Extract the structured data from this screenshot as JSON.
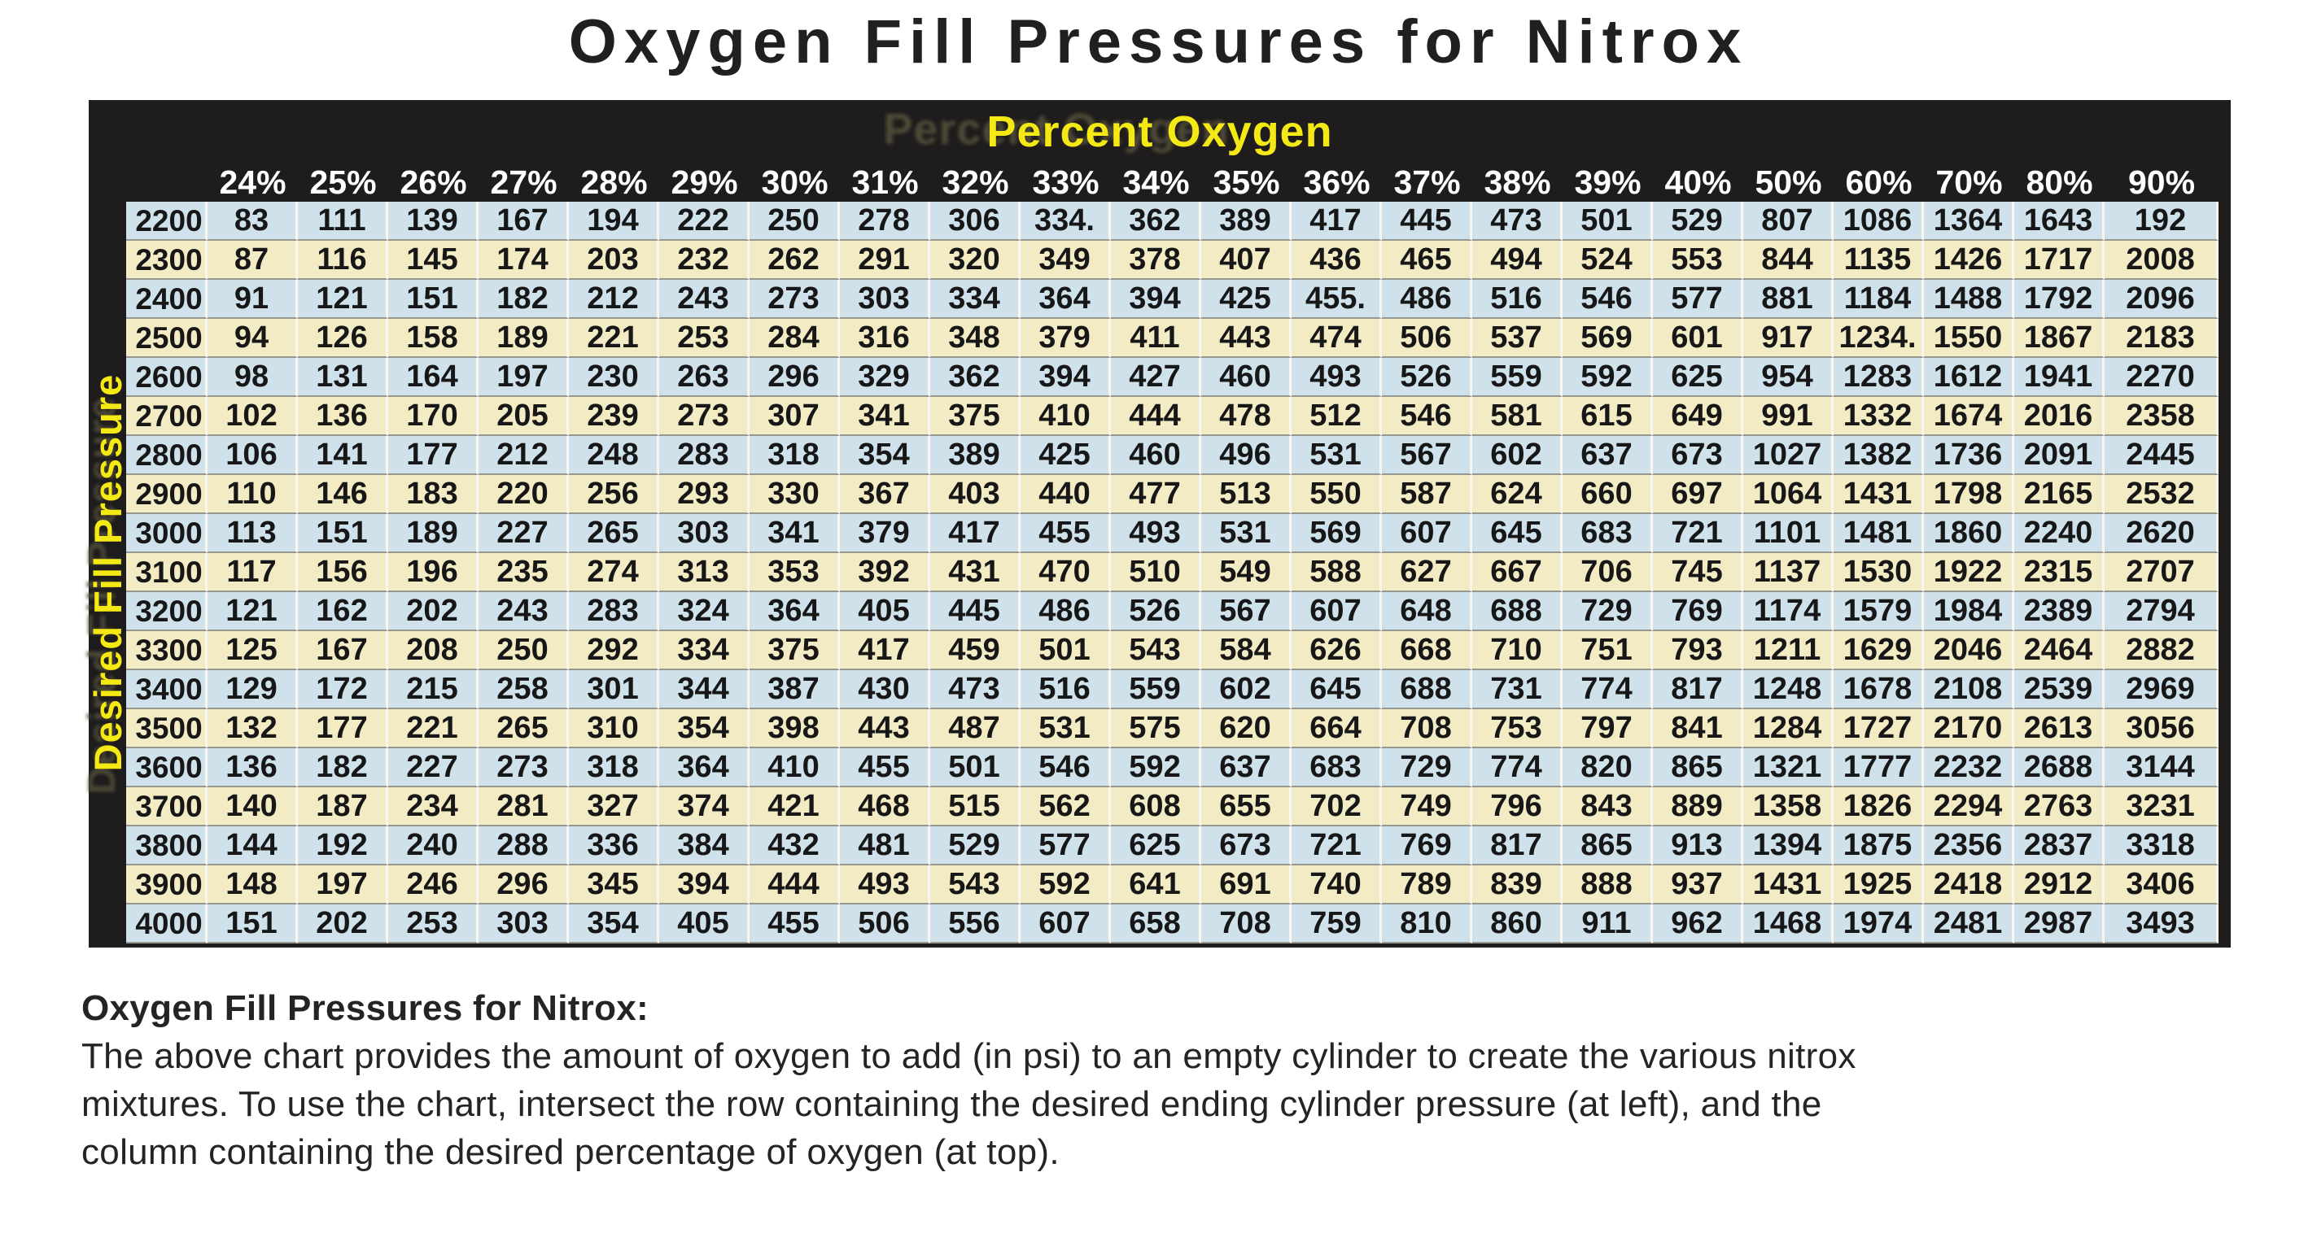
{
  "colors": {
    "page_bg": "#ffffff",
    "frame_black": "#1e1c1c",
    "accent_yellow": "#f5e915",
    "row_blue": "#cfe2ec",
    "row_cream": "#f2ebc4",
    "title_color": "#221f20",
    "footer_color": "#242422"
  },
  "chart_data": {
    "type": "table",
    "title": "Oxygen Fill Pressures for Nitrox",
    "column_axis_label": "Percent Oxygen",
    "row_axis_label": "Desired Fill Pressure",
    "column_headers": [
      "24%",
      "25%",
      "26%",
      "27%",
      "28%",
      "29%",
      "30%",
      "31%",
      "32%",
      "33%",
      "34%",
      "35%",
      "36%",
      "37%",
      "38%",
      "39%",
      "40%",
      "50%",
      "60%",
      "70%",
      "80%",
      "90%"
    ],
    "rows": [
      {
        "label": "2200",
        "values": [
          "83",
          "111",
          "139",
          "167",
          "194",
          "222",
          "250",
          "278",
          "306",
          "334.",
          "362",
          "389",
          "417",
          "445",
          "473",
          "501",
          "529",
          "807",
          "1086",
          "1364",
          "1643",
          "192"
        ]
      },
      {
        "label": "2300",
        "values": [
          "87",
          "116",
          "145",
          "174",
          "203",
          "232",
          "262",
          "291",
          "320",
          "349",
          "378",
          "407",
          "436",
          "465",
          "494",
          "524",
          "553",
          "844",
          "1135",
          "1426",
          "1717",
          "2008"
        ]
      },
      {
        "label": "2400",
        "values": [
          "91",
          "121",
          "151",
          "182",
          "212",
          "243",
          "273",
          "303",
          "334",
          "364",
          "394",
          "425",
          "455.",
          "486",
          "516",
          "546",
          "577",
          "881",
          "1184",
          "1488",
          "1792",
          "2096"
        ]
      },
      {
        "label": "2500",
        "values": [
          "94",
          "126",
          "158",
          "189",
          "221",
          "253",
          "284",
          "316",
          "348",
          "379",
          "411",
          "443",
          "474",
          "506",
          "537",
          "569",
          "601",
          "917",
          "1234.",
          "1550",
          "1867",
          "2183"
        ]
      },
      {
        "label": "2600",
        "values": [
          "98",
          "131",
          "164",
          "197",
          "230",
          "263",
          "296",
          "329",
          "362",
          "394",
          "427",
          "460",
          "493",
          "526",
          "559",
          "592",
          "625",
          "954",
          "1283",
          "1612",
          "1941",
          "2270"
        ]
      },
      {
        "label": "2700",
        "values": [
          "102",
          "136",
          "170",
          "205",
          "239",
          "273",
          "307",
          "341",
          "375",
          "410",
          "444",
          "478",
          "512",
          "546",
          "581",
          "615",
          "649",
          "991",
          "1332",
          "1674",
          "2016",
          "2358"
        ]
      },
      {
        "label": "2800",
        "values": [
          "106",
          "141",
          "177",
          "212",
          "248",
          "283",
          "318",
          "354",
          "389",
          "425",
          "460",
          "496",
          "531",
          "567",
          "602",
          "637",
          "673",
          "1027",
          "1382",
          "1736",
          "2091",
          "2445"
        ]
      },
      {
        "label": "2900",
        "values": [
          "110",
          "146",
          "183",
          "220",
          "256",
          "293",
          "330",
          "367",
          "403",
          "440",
          "477",
          "513",
          "550",
          "587",
          "624",
          "660",
          "697",
          "1064",
          "1431",
          "1798",
          "2165",
          "2532"
        ]
      },
      {
        "label": "3000",
        "values": [
          "113",
          "151",
          "189",
          "227",
          "265",
          "303",
          "341",
          "379",
          "417",
          "455",
          "493",
          "531",
          "569",
          "607",
          "645",
          "683",
          "721",
          "1101",
          "1481",
          "1860",
          "2240",
          "2620"
        ]
      },
      {
        "label": "3100",
        "values": [
          "117",
          "156",
          "196",
          "235",
          "274",
          "313",
          "353",
          "392",
          "431",
          "470",
          "510",
          "549",
          "588",
          "627",
          "667",
          "706",
          "745",
          "1137",
          "1530",
          "1922",
          "2315",
          "2707"
        ]
      },
      {
        "label": "3200",
        "values": [
          "121",
          "162",
          "202",
          "243",
          "283",
          "324",
          "364",
          "405",
          "445",
          "486",
          "526",
          "567",
          "607",
          "648",
          "688",
          "729",
          "769",
          "1174",
          "1579",
          "1984",
          "2389",
          "2794"
        ]
      },
      {
        "label": "3300",
        "values": [
          "125",
          "167",
          "208",
          "250",
          "292",
          "334",
          "375",
          "417",
          "459",
          "501",
          "543",
          "584",
          "626",
          "668",
          "710",
          "751",
          "793",
          "1211",
          "1629",
          "2046",
          "2464",
          "2882"
        ]
      },
      {
        "label": "3400",
        "values": [
          "129",
          "172",
          "215",
          "258",
          "301",
          "344",
          "387",
          "430",
          "473",
          "516",
          "559",
          "602",
          "645",
          "688",
          "731",
          "774",
          "817",
          "1248",
          "1678",
          "2108",
          "2539",
          "2969"
        ]
      },
      {
        "label": "3500",
        "values": [
          "132",
          "177",
          "221",
          "265",
          "310",
          "354",
          "398",
          "443",
          "487",
          "531",
          "575",
          "620",
          "664",
          "708",
          "753",
          "797",
          "841",
          "1284",
          "1727",
          "2170",
          "2613",
          "3056"
        ]
      },
      {
        "label": "3600",
        "values": [
          "136",
          "182",
          "227",
          "273",
          "318",
          "364",
          "410",
          "455",
          "501",
          "546",
          "592",
          "637",
          "683",
          "729",
          "774",
          "820",
          "865",
          "1321",
          "1777",
          "2232",
          "2688",
          "3144"
        ]
      },
      {
        "label": "3700",
        "values": [
          "140",
          "187",
          "234",
          "281",
          "327",
          "374",
          "421",
          "468",
          "515",
          "562",
          "608",
          "655",
          "702",
          "749",
          "796",
          "843",
          "889",
          "1358",
          "1826",
          "2294",
          "2763",
          "3231"
        ]
      },
      {
        "label": "3800",
        "values": [
          "144",
          "192",
          "240",
          "288",
          "336",
          "384",
          "432",
          "481",
          "529",
          "577",
          "625",
          "673",
          "721",
          "769",
          "817",
          "865",
          "913",
          "1394",
          "1875",
          "2356",
          "2837",
          "3318"
        ]
      },
      {
        "label": "3900",
        "values": [
          "148",
          "197",
          "246",
          "296",
          "345",
          "394",
          "444",
          "493",
          "543",
          "592",
          "641",
          "691",
          "740",
          "789",
          "839",
          "888",
          "937",
          "1431",
          "1925",
          "2418",
          "2912",
          "3406"
        ]
      },
      {
        "label": "4000",
        "values": [
          "151",
          "202",
          "253",
          "303",
          "354",
          "405",
          "455",
          "506",
          "556",
          "607",
          "658",
          "708",
          "759",
          "810",
          "860",
          "911",
          "962",
          "1468",
          "1974",
          "2481",
          "2987",
          "3493"
        ]
      }
    ],
    "row_stripe_pattern": [
      "blue",
      "cream"
    ],
    "grid_on": true
  },
  "footer": {
    "heading": "Oxygen Fill Pressures for Nitrox:",
    "lines": [
      "The above chart provides the amount of oxygen to add (in psi) to an empty cylinder to create the various nitrox",
      "mixtures. To use the chart, intersect the row containing the desired ending cylinder pressure (at left), and the",
      "column containing the desired percentage of oxygen (at top)."
    ]
  }
}
